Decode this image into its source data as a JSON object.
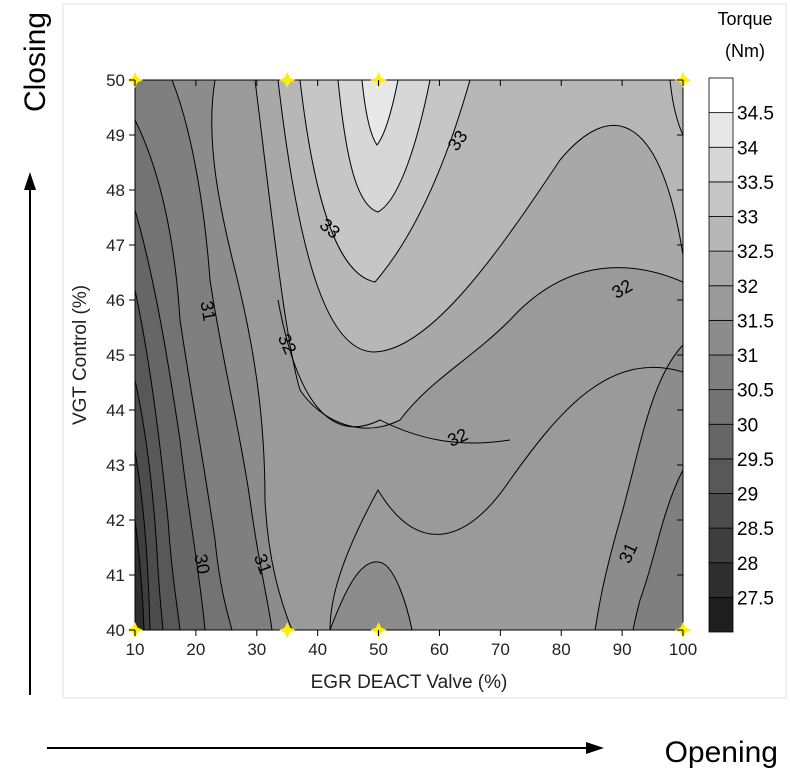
{
  "chart_data": {
    "type": "heatmap",
    "subtype": "filled-contour",
    "xlabel": "EGR DEACT Valve (%)",
    "ylabel": "VGT Control (%)",
    "xlim": [
      10,
      100
    ],
    "ylim": [
      40,
      50
    ],
    "x_ticks": [
      10,
      20,
      30,
      40,
      50,
      60,
      70,
      80,
      90,
      100
    ],
    "y_ticks": [
      40,
      41,
      42,
      43,
      44,
      45,
      46,
      47,
      48,
      49,
      50
    ],
    "colorbar": {
      "title_line1": "Torque",
      "title_line2": "(Nm)",
      "levels": [
        27.5,
        28,
        28.5,
        29,
        29.5,
        30,
        30.5,
        31,
        31.5,
        32,
        32.5,
        33,
        33.5,
        34,
        34.5
      ],
      "colors": [
        "#1e1e1e",
        "#2e2e2e",
        "#3e3e3e",
        "#4c4c4c",
        "#585858",
        "#666666",
        "#737373",
        "#7f7f7f",
        "#8c8c8c",
        "#9a9a9a",
        "#a8a8a8",
        "#b7b7b7",
        "#c6c6c6",
        "#d7d7d7",
        "#e8e8e8",
        "#ffffff"
      ]
    },
    "sample_points": [
      {
        "x": 10,
        "y": 40
      },
      {
        "x": 35,
        "y": 40
      },
      {
        "x": 50,
        "y": 40
      },
      {
        "x": 100,
        "y": 40
      },
      {
        "x": 10,
        "y": 50
      },
      {
        "x": 35,
        "y": 50
      },
      {
        "x": 50,
        "y": 50
      },
      {
        "x": 100,
        "y": 50
      }
    ],
    "sample_marker_color": "#ffee00",
    "contour_labels": [
      {
        "text": "33",
        "x": 63,
        "y": 48.9
      },
      {
        "text": "33",
        "x": 42,
        "y": 47.3
      },
      {
        "text": "32",
        "x": 90,
        "y": 46.2
      },
      {
        "text": "31",
        "x": 22,
        "y": 45.8
      },
      {
        "text": "32",
        "x": 35,
        "y": 45.2
      },
      {
        "text": "32",
        "x": 63,
        "y": 43.5
      },
      {
        "text": "30",
        "x": 21,
        "y": 41.2
      },
      {
        "text": "31",
        "x": 31,
        "y": 41.2
      },
      {
        "text": "31",
        "x": 91,
        "y": 41.4
      }
    ],
    "grid": false
  },
  "annotations": {
    "vertical_direction": "Closing",
    "horizontal_direction": "Opening"
  }
}
